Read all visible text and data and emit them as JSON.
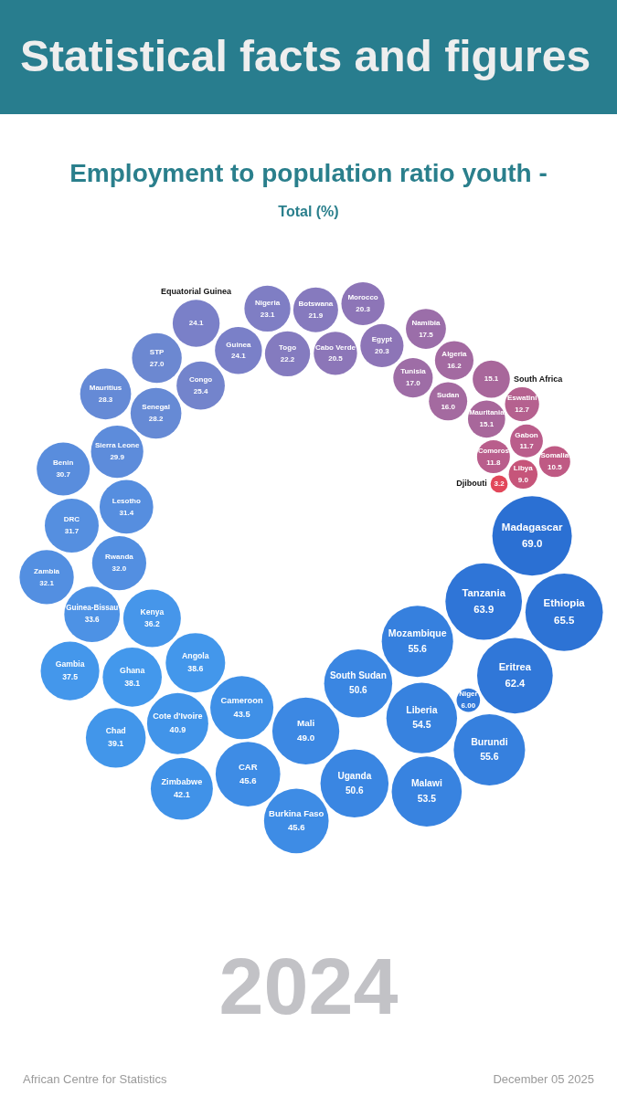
{
  "chart_data": {
    "type": "other",
    "title": "Employment to population ratio youth -",
    "subtitle": "Total (%)",
    "annotations": [
      "Statistical facts and figures",
      "2024",
      "African Centre for Statistics",
      "December 05 2025"
    ],
    "categories": [
      "Djibouti",
      "Libya",
      "Somalia",
      "Gabon",
      "Comoros",
      "Eswatini",
      "Mauritania",
      "South Africa",
      "Sudan",
      "Algeria",
      "Tunisia",
      "Namibia",
      "Egypt",
      "Morocco",
      "Cabo Verde",
      "Botswana",
      "Togo",
      "Nigeria",
      "Guinea",
      "Equatorial Guinea",
      "Congo",
      "STP",
      "Senegal",
      "Mauritius",
      "Sierra Leone",
      "Benin",
      "Lesotho",
      "DRC",
      "Rwanda",
      "Zambia",
      "Guinea-Bissau",
      "Kenya",
      "Gambia",
      "Ghana",
      "Angola",
      "Chad",
      "Cote d'Ivoire",
      "Zimbabwe",
      "Cameroon",
      "CAR",
      "Burkina Faso",
      "Mali",
      "Uganda",
      "South Sudan",
      "Malawi",
      "Liberia",
      "Burundi",
      "Mozambique",
      "Niger",
      "Eritrea",
      "Tanzania",
      "Ethiopia",
      "Madagascar"
    ],
    "values": [
      3.2,
      9.0,
      10.5,
      11.7,
      11.8,
      12.7,
      15.1,
      15.1,
      16.0,
      16.2,
      17.0,
      17.5,
      20.3,
      20.3,
      20.5,
      21.9,
      22.2,
      23.1,
      24.1,
      24.1,
      25.4,
      27.0,
      28.2,
      28.3,
      29.9,
      30.7,
      31.4,
      31.7,
      32.0,
      32.1,
      33.6,
      36.2,
      37.5,
      38.1,
      38.6,
      39.1,
      40.9,
      42.1,
      43.5,
      45.6,
      45.6,
      49.0,
      50.6,
      50.6,
      53.5,
      54.5,
      55.6,
      55.6,
      6.0,
      62.4,
      63.9,
      65.5,
      69.0
    ],
    "value_labels": [
      "3.2",
      "9.0",
      "10.5",
      "11.7",
      "11.8",
      "12.7",
      "15.1",
      "15.1",
      "16.0",
      "16.2",
      "17.0",
      "17.5",
      "20.3",
      "20.3",
      "20.5",
      "21.9",
      "22.2",
      "23.1",
      "24.1",
      "24.1",
      "25.4",
      "27.0",
      "28.2",
      "28.3",
      "29.9",
      "30.7",
      "31.4",
      "31.7",
      "32.0",
      "32.1",
      "33.6",
      "36.2",
      "37.5",
      "38.1",
      "38.6",
      "39.1",
      "40.9",
      "42.1",
      "43.5",
      "45.6",
      "45.6",
      "49.0",
      "50.6",
      "50.6",
      "53.5",
      "54.5",
      "55.6",
      "55.6",
      "6.00",
      "62.4",
      "63.9",
      "65.5",
      "69.0"
    ],
    "colors": [
      "#e2475a",
      "#c6557a",
      "#bf5a84",
      "#ba5d8b",
      "#b95e8c",
      "#b5618f",
      "#a8679b",
      "#a8679b",
      "#a46aa0",
      "#a36aa1",
      "#9e6da6",
      "#9b6ea9",
      "#8d75b7",
      "#8d75b7",
      "#8c76b8",
      "#867abe",
      "#847bbf",
      "#7f7ec4",
      "#7a80c8",
      "#7a80c8",
      "#7384cc",
      "#6c88d1",
      "#668ad5",
      "#658ad6",
      "#5d8cdb",
      "#598ddd",
      "#568edf",
      "#558fe0",
      "#538fe1",
      "#538fe1",
      "#4d92e5",
      "#4696ea",
      "#4497eb",
      "#4398ec",
      "#4397eb",
      "#4296ea",
      "#4194e9",
      "#4092e8",
      "#3f90e7",
      "#3e8ce5",
      "#3e8ce5",
      "#3c88e3",
      "#3a86e2",
      "#3a86e2",
      "#3883e0",
      "#3782df",
      "#3680de",
      "#3680de",
      "#327ada",
      "#3077d8",
      "#2f75d7",
      "#2d73d5",
      "#2b70d3"
    ]
  }
}
